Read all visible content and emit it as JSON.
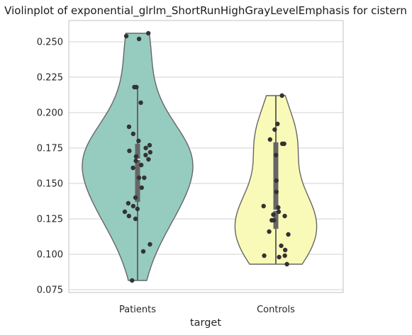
{
  "chart_data": {
    "type": "violin",
    "title": "Violinplot of exponential_glrlm_ShortRunHighGrayLevelEmphasis for cistern",
    "xlabel": "target",
    "ylabel": "",
    "ylim": [
      0.073,
      0.265
    ],
    "yticks": [
      "0.075",
      "0.100",
      "0.125",
      "0.150",
      "0.175",
      "0.200",
      "0.225",
      "0.250"
    ],
    "grid": "horizontal",
    "categories": [
      "Patients",
      "Controls"
    ],
    "colors": {
      "Patients": "#96cbc0",
      "Controls": "#fafab8",
      "outline": "#666666",
      "box": "#666666",
      "points": "#333333",
      "grid": "#d0d0d0",
      "frame": "#cccccc"
    },
    "series": [
      {
        "category": "Patients",
        "min": 0.0815,
        "max": 0.256,
        "q1": 0.137,
        "median": 0.167,
        "q3": 0.178,
        "whisker_low": 0.0815,
        "whisker_high": 0.218,
        "points": [
          0.256,
          0.254,
          0.252,
          0.218,
          0.218,
          0.207,
          0.19,
          0.185,
          0.18,
          0.177,
          0.175,
          0.173,
          0.172,
          0.17,
          0.169,
          0.167,
          0.166,
          0.163,
          0.161,
          0.154,
          0.154,
          0.147,
          0.14,
          0.136,
          0.134,
          0.132,
          0.13,
          0.127,
          0.125,
          0.107,
          0.102,
          0.0815
        ]
      },
      {
        "category": "Controls",
        "min": 0.093,
        "max": 0.212,
        "q1": 0.118,
        "median": 0.131,
        "q3": 0.179,
        "whisker_low": 0.093,
        "whisker_high": 0.212,
        "points": [
          0.212,
          0.192,
          0.188,
          0.181,
          0.178,
          0.178,
          0.17,
          0.152,
          0.144,
          0.134,
          0.133,
          0.13,
          0.128,
          0.127,
          0.124,
          0.124,
          0.116,
          0.114,
          0.106,
          0.103,
          0.099,
          0.099,
          0.098,
          0.093
        ]
      }
    ]
  }
}
